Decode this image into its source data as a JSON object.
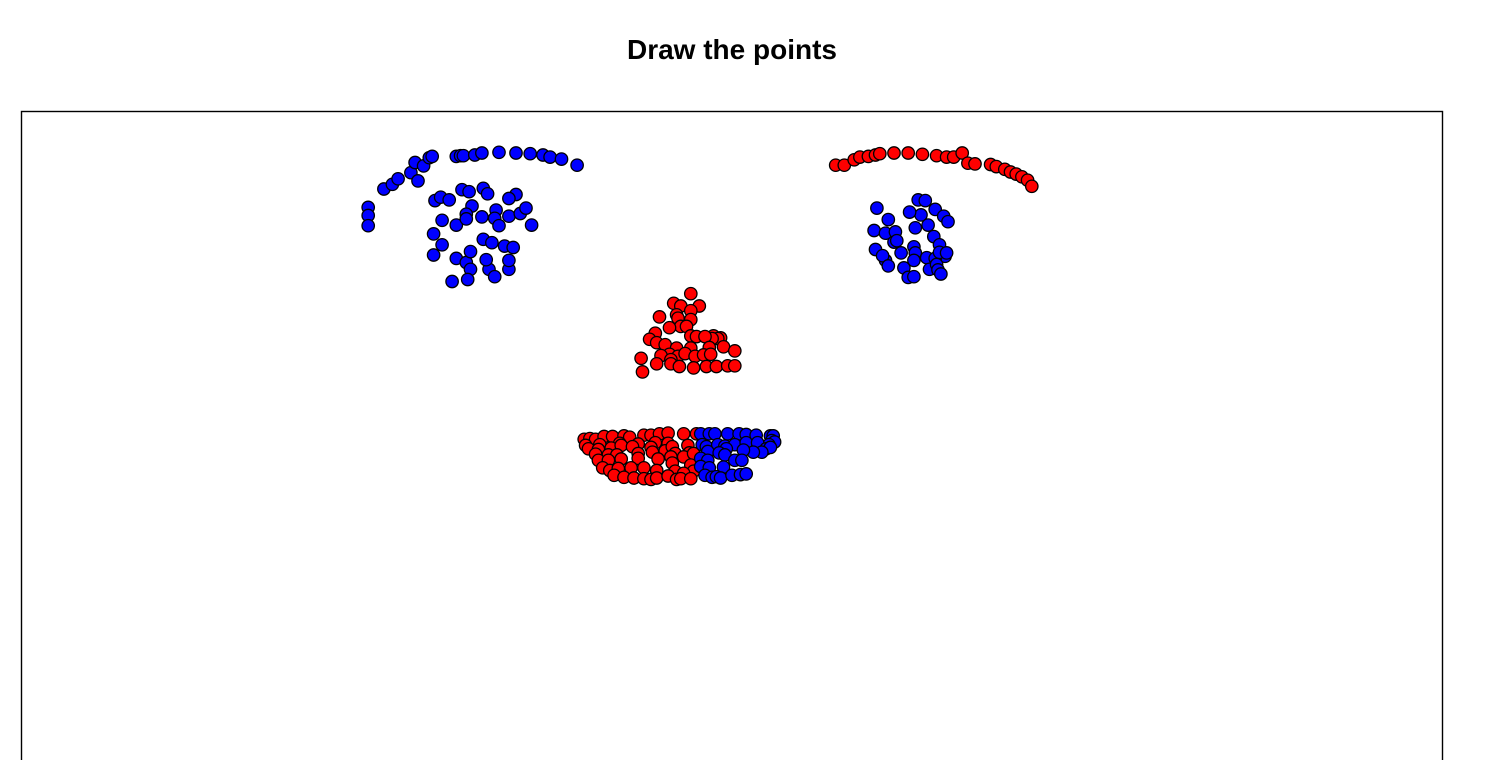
{
  "chart_data": {
    "type": "scatter",
    "title": "Draw the points",
    "xlabel": "",
    "ylabel": "",
    "xlim": [
      0,
      100
    ],
    "ylim": [
      0,
      100
    ],
    "axes_visible": false,
    "grid": false,
    "series": [
      {
        "color": "#0000ff",
        "values": [
          [
            24.4,
            85.9
          ],
          [
            24.4,
            84.7
          ],
          [
            24.4,
            83.2
          ],
          [
            25.5,
            88.6
          ],
          [
            26.1,
            89.3
          ],
          [
            26.5,
            90.1
          ],
          [
            27.4,
            91.0
          ],
          [
            27.7,
            92.5
          ],
          [
            27.9,
            89.8
          ],
          [
            28.3,
            92.0
          ],
          [
            28.7,
            93.2
          ],
          [
            28.9,
            93.4
          ],
          [
            30.6,
            93.4
          ],
          [
            30.9,
            93.5
          ],
          [
            31.1,
            93.5
          ],
          [
            31.9,
            93.6
          ],
          [
            32.4,
            93.9
          ],
          [
            33.6,
            94.0
          ],
          [
            34.8,
            93.9
          ],
          [
            35.8,
            93.8
          ],
          [
            36.7,
            93.6
          ],
          [
            37.2,
            93.3
          ],
          [
            38.0,
            93.0
          ],
          [
            39.1,
            92.1
          ],
          [
            29.1,
            86.9
          ],
          [
            29.5,
            87.4
          ],
          [
            30.1,
            87.0
          ],
          [
            31.0,
            88.5
          ],
          [
            31.5,
            88.2
          ],
          [
            32.5,
            88.7
          ],
          [
            32.8,
            87.9
          ],
          [
            34.8,
            87.8
          ],
          [
            34.3,
            87.2
          ],
          [
            31.7,
            86.1
          ],
          [
            31.3,
            84.9
          ],
          [
            32.4,
            84.5
          ],
          [
            33.4,
            85.5
          ],
          [
            34.3,
            84.6
          ],
          [
            35.1,
            85.0
          ],
          [
            35.5,
            85.8
          ],
          [
            29.0,
            82.0
          ],
          [
            29.6,
            84.0
          ],
          [
            30.6,
            83.3
          ],
          [
            31.3,
            84.2
          ],
          [
            33.3,
            84.3
          ],
          [
            33.6,
            83.2
          ],
          [
            32.5,
            81.2
          ],
          [
            33.1,
            80.7
          ],
          [
            34.0,
            80.2
          ],
          [
            34.6,
            80.0
          ],
          [
            35.9,
            83.3
          ],
          [
            29.0,
            78.9
          ],
          [
            29.6,
            80.4
          ],
          [
            30.6,
            78.4
          ],
          [
            31.3,
            77.8
          ],
          [
            31.6,
            76.8
          ],
          [
            31.6,
            79.4
          ],
          [
            32.9,
            76.8
          ],
          [
            32.7,
            78.2
          ],
          [
            34.3,
            76.8
          ],
          [
            34.3,
            78.1
          ],
          [
            33.3,
            75.7
          ],
          [
            31.4,
            75.3
          ],
          [
            30.3,
            75.0
          ]
        ]
      },
      {
        "color": "#0000ff",
        "values": [
          [
            63.1,
            87.0
          ],
          [
            63.6,
            86.9
          ],
          [
            63.3,
            84.8
          ],
          [
            62.5,
            85.2
          ],
          [
            64.3,
            85.6
          ],
          [
            64.9,
            84.6
          ],
          [
            60.2,
            85.8
          ],
          [
            61.0,
            84.1
          ],
          [
            61.4,
            80.8
          ],
          [
            62.9,
            82.9
          ],
          [
            63.8,
            83.3
          ],
          [
            65.2,
            83.8
          ],
          [
            60.0,
            82.5
          ],
          [
            60.8,
            82.1
          ],
          [
            61.5,
            82.3
          ],
          [
            61.6,
            81.0
          ],
          [
            62.8,
            80.1
          ],
          [
            64.2,
            81.6
          ],
          [
            64.6,
            80.4
          ],
          [
            65.0,
            78.7
          ],
          [
            60.1,
            79.7
          ],
          [
            60.8,
            78.1
          ],
          [
            61.9,
            79.2
          ],
          [
            62.9,
            79.2
          ],
          [
            62.8,
            78.1
          ],
          [
            63.7,
            78.5
          ],
          [
            64.3,
            78.4
          ],
          [
            64.6,
            79.3
          ],
          [
            65.1,
            79.2
          ],
          [
            60.6,
            78.8
          ],
          [
            61.0,
            77.3
          ],
          [
            62.1,
            77.0
          ],
          [
            63.9,
            76.8
          ],
          [
            64.4,
            77.5
          ],
          [
            64.5,
            76.7
          ],
          [
            62.4,
            75.6
          ],
          [
            62.8,
            75.7
          ],
          [
            64.7,
            76.1
          ]
        ]
      },
      {
        "color": "#ff0000",
        "values": [
          [
            57.3,
            92.1
          ],
          [
            57.9,
            92.1
          ],
          [
            58.6,
            92.9
          ],
          [
            59.0,
            93.3
          ],
          [
            59.6,
            93.4
          ],
          [
            60.1,
            93.6
          ],
          [
            60.4,
            93.8
          ],
          [
            61.4,
            93.9
          ],
          [
            62.4,
            93.9
          ],
          [
            63.4,
            93.7
          ],
          [
            64.4,
            93.5
          ],
          [
            65.1,
            93.3
          ],
          [
            65.6,
            93.3
          ],
          [
            66.2,
            93.9
          ],
          [
            66.6,
            92.4
          ],
          [
            67.1,
            92.3
          ],
          [
            68.2,
            92.2
          ],
          [
            68.6,
            91.9
          ],
          [
            69.2,
            91.5
          ],
          [
            69.6,
            91.1
          ],
          [
            70.0,
            90.8
          ],
          [
            70.4,
            90.4
          ],
          [
            70.8,
            89.9
          ],
          [
            71.1,
            89.0
          ]
        ]
      },
      {
        "color": "#ff0000",
        "values": [
          [
            47.1,
            73.2
          ],
          [
            45.9,
            71.8
          ],
          [
            46.4,
            71.4
          ],
          [
            47.7,
            71.4
          ],
          [
            47.1,
            70.7
          ],
          [
            46.1,
            70.1
          ],
          [
            44.9,
            69.8
          ],
          [
            46.2,
            69.6
          ],
          [
            47.1,
            69.4
          ],
          [
            46.4,
            68.4
          ],
          [
            46.8,
            68.4
          ],
          [
            45.6,
            68.2
          ],
          [
            44.6,
            67.4
          ],
          [
            47.1,
            67.0
          ],
          [
            48.7,
            67.0
          ],
          [
            49.2,
            66.7
          ],
          [
            49.0,
            66.6
          ],
          [
            48.6,
            66.6
          ],
          [
            47.5,
            66.9
          ],
          [
            48.1,
            66.9
          ],
          [
            44.2,
            66.5
          ],
          [
            44.7,
            66.0
          ],
          [
            45.3,
            65.7
          ],
          [
            46.1,
            65.2
          ],
          [
            47.1,
            65.2
          ],
          [
            48.4,
            65.3
          ],
          [
            49.4,
            65.4
          ],
          [
            50.2,
            64.8
          ],
          [
            45.6,
            64.3
          ],
          [
            46.2,
            64.0
          ],
          [
            46.7,
            64.4
          ],
          [
            47.4,
            64.0
          ],
          [
            48.0,
            64.2
          ],
          [
            48.5,
            64.3
          ],
          [
            43.6,
            63.7
          ],
          [
            45.0,
            64.1
          ],
          [
            45.7,
            63.5
          ],
          [
            44.7,
            62.9
          ],
          [
            45.7,
            62.9
          ],
          [
            46.3,
            62.5
          ],
          [
            47.3,
            62.3
          ],
          [
            48.2,
            62.5
          ],
          [
            48.9,
            62.5
          ],
          [
            49.7,
            62.6
          ],
          [
            50.2,
            62.6
          ],
          [
            43.7,
            61.7
          ]
        ]
      },
      {
        "color": "#ff0000",
        "values": [
          [
            39.6,
            51.8
          ],
          [
            40.0,
            51.9
          ],
          [
            40.4,
            51.8
          ],
          [
            41.0,
            52.2
          ],
          [
            41.6,
            52.2
          ],
          [
            42.4,
            52.3
          ],
          [
            42.8,
            52.1
          ],
          [
            43.8,
            52.4
          ],
          [
            44.3,
            52.4
          ],
          [
            44.9,
            52.6
          ],
          [
            45.5,
            52.7
          ],
          [
            46.6,
            52.6
          ],
          [
            47.5,
            52.6
          ],
          [
            39.7,
            50.9
          ],
          [
            40.7,
            51.0
          ],
          [
            42.1,
            51.2
          ],
          [
            43.4,
            51.1
          ],
          [
            44.6,
            51.3
          ],
          [
            45.5,
            51.2
          ],
          [
            46.9,
            50.9
          ],
          [
            39.9,
            50.4
          ],
          [
            40.6,
            50.3
          ],
          [
            41.5,
            50.5
          ],
          [
            42.2,
            50.9
          ],
          [
            43.0,
            50.7
          ],
          [
            44.3,
            50.6
          ],
          [
            45.3,
            50.1
          ],
          [
            45.8,
            50.7
          ],
          [
            46.0,
            49.7
          ],
          [
            47.0,
            49.8
          ],
          [
            40.4,
            49.6
          ],
          [
            41.3,
            49.5
          ],
          [
            41.9,
            49.5
          ],
          [
            43.4,
            49.7
          ],
          [
            44.4,
            49.9
          ],
          [
            45.7,
            49.2
          ],
          [
            46.6,
            49.2
          ],
          [
            47.3,
            49.7
          ],
          [
            40.6,
            48.7
          ],
          [
            41.3,
            48.7
          ],
          [
            42.2,
            48.9
          ],
          [
            43.4,
            49.0
          ],
          [
            44.8,
            48.9
          ],
          [
            45.8,
            48.3
          ],
          [
            47.1,
            48.0
          ],
          [
            47.3,
            47.1
          ],
          [
            40.9,
            47.6
          ],
          [
            41.4,
            47.2
          ],
          [
            42.0,
            47.5
          ],
          [
            42.9,
            47.6
          ],
          [
            43.8,
            47.6
          ],
          [
            44.7,
            47.2
          ],
          [
            46.0,
            47.1
          ],
          [
            46.6,
            46.8
          ],
          [
            41.7,
            46.5
          ],
          [
            42.4,
            46.2
          ],
          [
            43.1,
            46.1
          ],
          [
            43.8,
            46.0
          ],
          [
            44.3,
            45.9
          ],
          [
            44.7,
            46.1
          ],
          [
            45.5,
            46.4
          ],
          [
            46.1,
            45.9
          ],
          [
            46.4,
            46.0
          ],
          [
            47.1,
            46.0
          ]
        ]
      },
      {
        "color": "#0000ff",
        "values": [
          [
            47.8,
            52.6
          ],
          [
            48.4,
            52.6
          ],
          [
            48.8,
            52.6
          ],
          [
            49.7,
            52.6
          ],
          [
            50.5,
            52.6
          ],
          [
            51.0,
            52.5
          ],
          [
            51.7,
            52.4
          ],
          [
            52.7,
            52.3
          ],
          [
            52.9,
            52.3
          ],
          [
            52.8,
            51.6
          ],
          [
            53.0,
            51.4
          ],
          [
            52.6,
            51.0
          ],
          [
            47.9,
            51.0
          ],
          [
            48.2,
            50.7
          ],
          [
            49.0,
            51.0
          ],
          [
            49.5,
            50.8
          ],
          [
            50.2,
            51.0
          ],
          [
            51.0,
            51.3
          ],
          [
            51.8,
            51.3
          ],
          [
            52.4,
            50.4
          ],
          [
            52.7,
            50.6
          ],
          [
            52.1,
            49.9
          ],
          [
            51.5,
            49.9
          ],
          [
            50.8,
            50.2
          ],
          [
            49.6,
            50.4
          ],
          [
            48.3,
            50.0
          ],
          [
            49.1,
            49.8
          ],
          [
            49.5,
            49.5
          ],
          [
            47.8,
            49.0
          ],
          [
            48.3,
            48.7
          ],
          [
            50.2,
            48.7
          ],
          [
            50.7,
            48.7
          ],
          [
            47.8,
            47.8
          ],
          [
            48.4,
            47.6
          ],
          [
            49.4,
            47.7
          ],
          [
            48.1,
            46.5
          ],
          [
            48.6,
            46.2
          ],
          [
            48.9,
            46.3
          ],
          [
            49.2,
            46.1
          ],
          [
            50.0,
            46.5
          ],
          [
            50.6,
            46.6
          ],
          [
            51.0,
            46.7
          ]
        ]
      }
    ]
  }
}
